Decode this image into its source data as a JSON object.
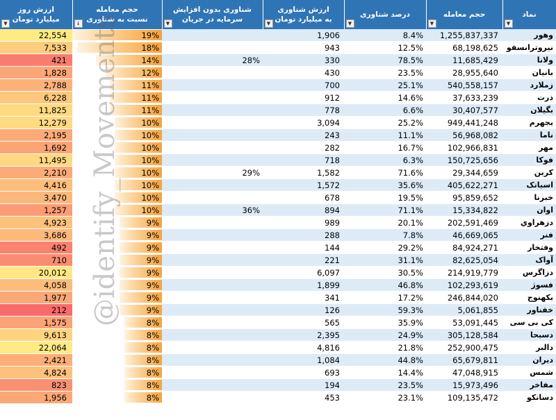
{
  "headers": {
    "day_value": [
      "ارزش روز",
      "میلیارد تومان"
    ],
    "volume_to_float": [
      "حجم معامله",
      "نسبت به شناوری"
    ],
    "float_no_increase": [
      "شناوری بدون افزایش",
      "سرمایه در جریان"
    ],
    "float_value": [
      "ارزش شناوری",
      "به میلیارد تومان"
    ],
    "float_percent": [
      "درصد شناوری"
    ],
    "volume": [
      "حجم معامله"
    ],
    "symbol": [
      "نماد"
    ]
  },
  "watermark": "@identify_Movements",
  "colors": {
    "header_bg": "#2f75b5",
    "band": "#ddebf7",
    "bar": "#f6a33c"
  },
  "rows": [
    {
      "symbol": "وهور",
      "volume": "1,255,837,337",
      "float_pct": "8.4%",
      "float_value": "1,906",
      "float_no_inc": "",
      "ratio": "19%",
      "ratio_num": 19,
      "day_value": "22,554",
      "day_num": 22554
    },
    {
      "symbol": "نیروترانسفو",
      "volume": "68,198,625",
      "float_pct": "12.5%",
      "float_value": "943",
      "float_no_inc": "",
      "ratio": "18%",
      "ratio_num": 18,
      "day_value": "7,533",
      "day_num": 7533
    },
    {
      "symbol": "ولانا",
      "volume": "11,685,429",
      "float_pct": "78.5%",
      "float_value": "330",
      "float_no_inc": "28%",
      "ratio": "14%",
      "ratio_num": 14,
      "day_value": "421",
      "day_num": 421
    },
    {
      "symbol": "بانیان",
      "volume": "28,955,640",
      "float_pct": "23.5%",
      "float_value": "430",
      "float_no_inc": "",
      "ratio": "12%",
      "ratio_num": 12,
      "day_value": "1,828",
      "day_num": 1828
    },
    {
      "symbol": "زملارد",
      "volume": "540,558,157",
      "float_pct": "25.1%",
      "float_value": "700",
      "float_no_inc": "",
      "ratio": "11%",
      "ratio_num": 11,
      "day_value": "2,788",
      "day_num": 2788
    },
    {
      "symbol": "ذرت",
      "volume": "37,633,239",
      "float_pct": "14.6%",
      "float_value": "912",
      "float_no_inc": "",
      "ratio": "11%",
      "ratio_num": 11,
      "day_value": "6,228",
      "day_num": 6228
    },
    {
      "symbol": "بگیلان",
      "volume": "30,407,577",
      "float_pct": "6.6%",
      "float_value": "778",
      "float_no_inc": "",
      "ratio": "11%",
      "ratio_num": 11,
      "day_value": "11,825",
      "day_num": 11825
    },
    {
      "symbol": "بجهرم",
      "volume": "949,441,248",
      "float_pct": "25.2%",
      "float_value": "3,094",
      "float_no_inc": "",
      "ratio": "10%",
      "ratio_num": 10,
      "day_value": "12,279",
      "day_num": 12279
    },
    {
      "symbol": "ناما",
      "volume": "56,968,082",
      "float_pct": "11.1%",
      "float_value": "243",
      "float_no_inc": "",
      "ratio": "10%",
      "ratio_num": 10,
      "day_value": "2,195",
      "day_num": 2195
    },
    {
      "symbol": "مهر",
      "volume": "102,966,831",
      "float_pct": "16.7%",
      "float_value": "282",
      "float_no_inc": "",
      "ratio": "10%",
      "ratio_num": 10,
      "day_value": "1,692",
      "day_num": 1692
    },
    {
      "symbol": "فوکا",
      "volume": "150,725,656",
      "float_pct": "6.3%",
      "float_value": "718",
      "float_no_inc": "",
      "ratio": "10%",
      "ratio_num": 10,
      "day_value": "11,495",
      "day_num": 11495
    },
    {
      "symbol": "کربن",
      "volume": "29,344,659",
      "float_pct": "71.6%",
      "float_value": "1,582",
      "float_no_inc": "29%",
      "ratio": "10%",
      "ratio_num": 10,
      "day_value": "2,210",
      "day_num": 2210
    },
    {
      "symbol": "اسیاتک",
      "volume": "405,622,271",
      "float_pct": "35.6%",
      "float_value": "1,572",
      "float_no_inc": "",
      "ratio": "10%",
      "ratio_num": 10,
      "day_value": "4,416",
      "day_num": 4416
    },
    {
      "symbol": "خبرنا",
      "volume": "95,859,652",
      "float_pct": "19.5%",
      "float_value": "678",
      "float_no_inc": "",
      "ratio": "10%",
      "ratio_num": 10,
      "day_value": "3,470",
      "day_num": 3470
    },
    {
      "symbol": "اوان",
      "volume": "15,334,822",
      "float_pct": "71.1%",
      "float_value": "894",
      "float_no_inc": "36%",
      "ratio": "10%",
      "ratio_num": 10,
      "day_value": "1,257",
      "day_num": 1257
    },
    {
      "symbol": "دزهراوي",
      "volume": "202,591,469",
      "float_pct": "20.1%",
      "float_value": "989",
      "float_no_inc": "",
      "ratio": "9%",
      "ratio_num": 9,
      "day_value": "4,923",
      "day_num": 4923
    },
    {
      "symbol": "فنر",
      "volume": "46,669,065",
      "float_pct": "7.8%",
      "float_value": "288",
      "float_no_inc": "",
      "ratio": "9%",
      "ratio_num": 9,
      "day_value": "3,686",
      "day_num": 3686
    },
    {
      "symbol": "وفتخار",
      "volume": "84,924,271",
      "float_pct": "29.2%",
      "float_value": "144",
      "float_no_inc": "",
      "ratio": "9%",
      "ratio_num": 9,
      "day_value": "492",
      "day_num": 492
    },
    {
      "symbol": "آواک",
      "volume": "82,625,054",
      "float_pct": "31.1%",
      "float_value": "221",
      "float_no_inc": "",
      "ratio": "9%",
      "ratio_num": 9,
      "day_value": "710",
      "day_num": 710
    },
    {
      "symbol": "دزاگرس",
      "volume": "214,919,779",
      "float_pct": "30.5%",
      "float_value": "6,097",
      "float_no_inc": "",
      "ratio": "9%",
      "ratio_num": 9,
      "day_value": "20,012",
      "day_num": 20012
    },
    {
      "symbol": "فسوژ",
      "volume": "102,293,619",
      "float_pct": "46.8%",
      "float_value": "1,899",
      "float_no_inc": "",
      "ratio": "9%",
      "ratio_num": 9,
      "day_value": "4,058",
      "day_num": 4058
    },
    {
      "symbol": "بکهنوج",
      "volume": "246,844,020",
      "float_pct": "17.2%",
      "float_value": "341",
      "float_no_inc": "",
      "ratio": "9%",
      "ratio_num": 9,
      "day_value": "1,977",
      "day_num": 1977
    },
    {
      "symbol": "خفناور",
      "volume": "5,061,855",
      "float_pct": "59.3%",
      "float_value": "126",
      "float_no_inc": "",
      "ratio": "9%",
      "ratio_num": 9,
      "day_value": "212",
      "day_num": 212
    },
    {
      "symbol": "کی بی سی",
      "volume": "53,091,445",
      "float_pct": "35.9%",
      "float_value": "565",
      "float_no_inc": "",
      "ratio": "8%",
      "ratio_num": 8,
      "day_value": "1,575",
      "day_num": 1575
    },
    {
      "symbol": "دسبحا",
      "volume": "305,128,584",
      "float_pct": "24.9%",
      "float_value": "2,395",
      "float_no_inc": "",
      "ratio": "8%",
      "ratio_num": 8,
      "day_value": "9,613",
      "day_num": 9613
    },
    {
      "symbol": "دالبر",
      "volume": "252,900,475",
      "float_pct": "21.8%",
      "float_value": "4,816",
      "float_no_inc": "",
      "ratio": "8%",
      "ratio_num": 8,
      "day_value": "22,064",
      "day_num": 22064
    },
    {
      "symbol": "دیران",
      "volume": "65,679,811",
      "float_pct": "44.8%",
      "float_value": "1,084",
      "float_no_inc": "",
      "ratio": "8%",
      "ratio_num": 8,
      "day_value": "2,421",
      "day_num": 2421
    },
    {
      "symbol": "شمس",
      "volume": "47,048,915",
      "float_pct": "14.4%",
      "float_value": "693",
      "float_no_inc": "",
      "ratio": "8%",
      "ratio_num": 8,
      "day_value": "4,824",
      "day_num": 4824
    },
    {
      "symbol": "مفاخر",
      "volume": "15,973,496",
      "float_pct": "23.5%",
      "float_value": "194",
      "float_no_inc": "",
      "ratio": "8%",
      "ratio_num": 8,
      "day_value": "823",
      "day_num": 823
    },
    {
      "symbol": "دسانکو",
      "volume": "109,135,472",
      "float_pct": "23.1%",
      "float_value": "453",
      "float_no_inc": "",
      "ratio": "8%",
      "ratio_num": 8,
      "day_value": "1,956",
      "day_num": 1956
    }
  ]
}
